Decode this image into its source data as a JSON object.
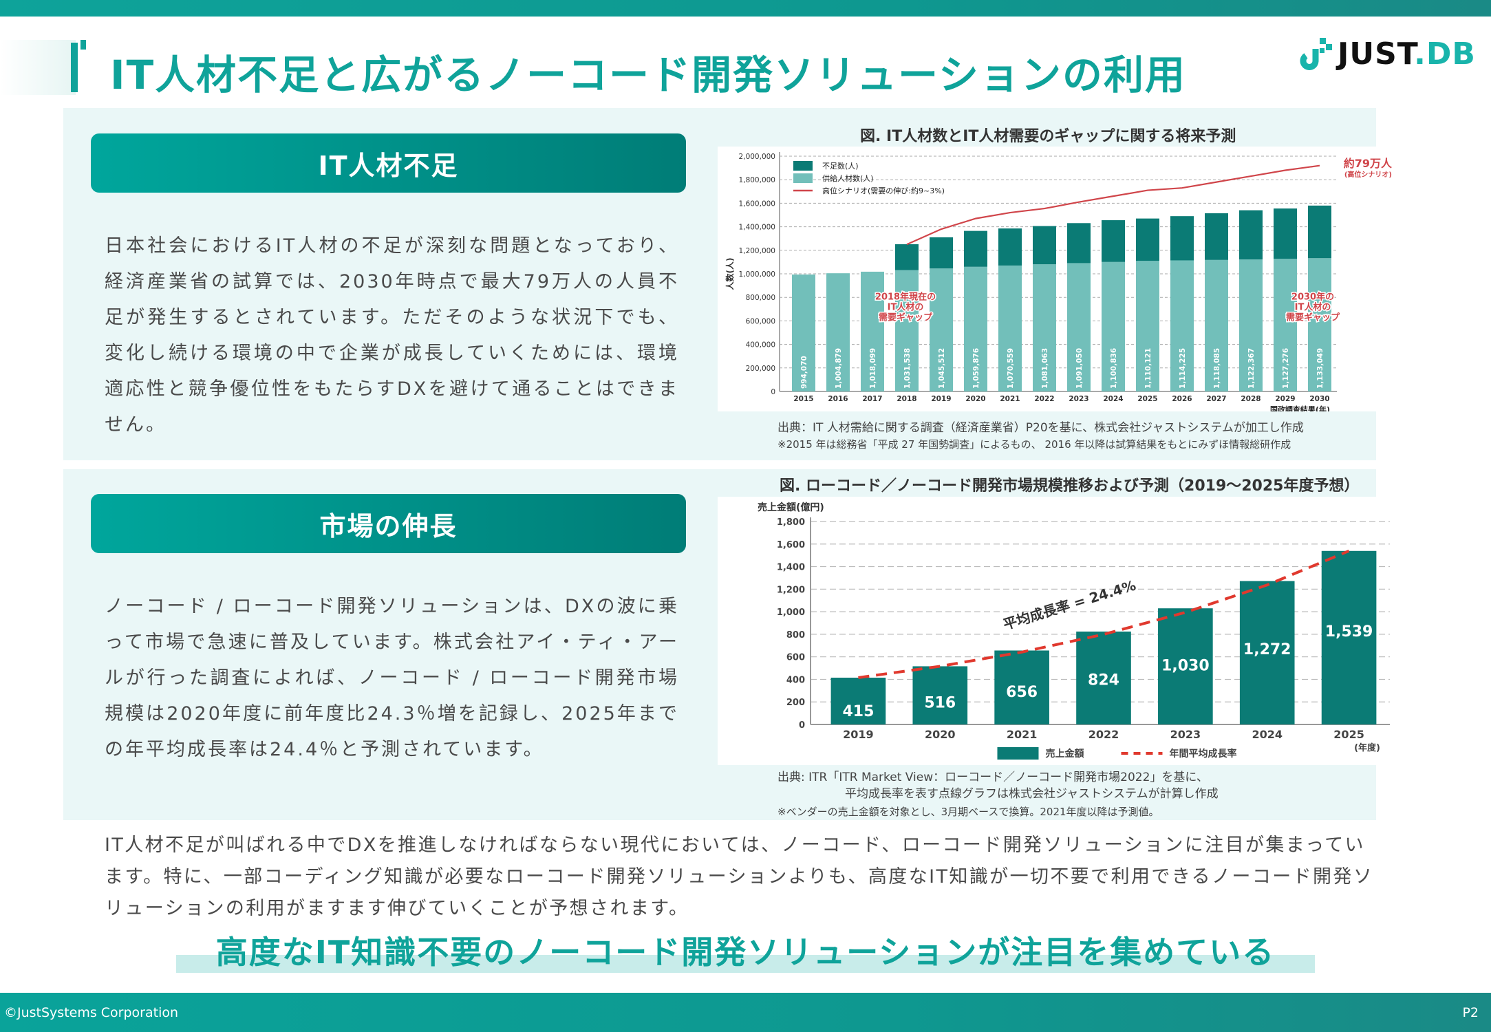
{
  "header": {
    "title": "IT人材不足と広がるノーコード開発ソリューションの利用",
    "logo": {
      "text_main": "JUST",
      "text_accent": ".DB",
      "icon": "justdb-logo-icon"
    }
  },
  "colors": {
    "brand_teal": "#0fa39a",
    "panel_bg": "#eaf7f7",
    "bar_dark": "#0b7b75",
    "bar_light": "#72bfba",
    "line_red": "#d0454a",
    "dash_red": "#e0392e"
  },
  "sections": [
    {
      "header": "IT人材不足",
      "body": "日本社会におけるIT人材の不足が深刻な問題となっており、経済産業省の試算では、2030年時点で最大79万人の人員不足が発生するとされています。ただそのような状況下でも、変化し続ける環境の中で企業が成長していくためには、環境適応性と競争優位性をもたらすDXを避けて通ることはできません。",
      "chart_title": "図. IT人材数とIT人材需要のギャップに関する将来予測",
      "source_lines": [
        "出典：IT 人材需給に関する調査（経済産業省）P20を基に、株式会社ジャストシステムが加工し作成",
        "※2015 年は総務省「平成 27 年国勢調査」によるもの、 2016 年以降は試算結果をもとにみずほ情報総研作成"
      ]
    },
    {
      "header": "市場の伸長",
      "body": "ノーコード / ローコード開発ソリューションは、DXの波に乗って市場で急速に普及しています。株式会社アイ・ティ・アールが行った調査によれば、ノーコード / ローコード開発市場規模は2020年度に前年度比24.3％増を記録し、2025年までの年平均成長率は24.4％と予測されています。",
      "chart_title": "図. ローコード／ノーコード開発市場規模推移および予測（2019～2025年度予想）",
      "source_lines": [
        "出典: ITR「ITR Market View：ローコード／ノーコード開発市場2022」を基に、",
        "平均成長率を表す点線グラフは株式会社ジャストシステムが計算し作成",
        "※ベンダーの売上金額を対象とし、3月期ベースで換算。2021年度以降は予測値。"
      ]
    }
  ],
  "conclusion": "IT人材不足が叫ばれる中でDXを推進しなければならない現代においては、ノーコード、ローコード開発ソリューションに注目が集まっています。特に、一部コーディング知識が必要なローコード開発ソリューションよりも、高度なIT知識が一切不要で利用できるノーコード開発ソリューションの利用がますます伸びていくことが予想されます。",
  "tagline": "高度なIT知識不要のノーコード開発ソリューションが注目を集めている",
  "footer": {
    "copyright": "©JustSystems Corporation",
    "page": "P2"
  },
  "chart_data": [
    {
      "type": "bar",
      "stacked": true,
      "title": "図. IT人材数とIT人材需要のギャップに関する将来予測",
      "xlabel": "国政調査結果(年)",
      "ylabel": "人数(人)",
      "ylim": [
        0,
        2000000
      ],
      "yticks": [
        "0",
        "200,000",
        "400,000",
        "600,000",
        "800,000",
        "1,000,000",
        "1,200,000",
        "1,400,000",
        "1,600,000",
        "1,800,000",
        "2,000,000"
      ],
      "ytick_values": [
        0,
        200000,
        400000,
        600000,
        800000,
        1000000,
        1200000,
        1400000,
        1600000,
        1800000,
        2000000
      ],
      "grid": true,
      "legend_position": "top-left",
      "categories": [
        "2015",
        "2016",
        "2017",
        "2018",
        "2019",
        "2020",
        "2021",
        "2022",
        "2023",
        "2024",
        "2025",
        "2026",
        "2027",
        "2028",
        "2029",
        "2030"
      ],
      "series": [
        {
          "name": "供給人材数(人)",
          "kind": "bar",
          "values": [
            994070,
            1004879,
            1018099,
            1031538,
            1045512,
            1059876,
            1070559,
            1081063,
            1091050,
            1100836,
            1110121,
            1114225,
            1118085,
            1122367,
            1127276,
            1133049
          ],
          "labels": [
            "994,070",
            "1,004,879",
            "1,018,099",
            "1,031,538",
            "1,045,512",
            "1,059,876",
            "1,070,559",
            "1,081,063",
            "1,091,050",
            "1,100,836",
            "1,110,121",
            "1,114,225",
            "1,118,085",
            "1,122,367",
            "1,127,276",
            "1,133,049"
          ]
        },
        {
          "name": "不足数(人)",
          "kind": "bar",
          "values": [
            0,
            0,
            0,
            220000,
            265000,
            305000,
            315000,
            325000,
            340000,
            355000,
            360000,
            376000,
            397000,
            418000,
            428000,
            447000
          ]
        },
        {
          "name": "高位シナリオ(需要の伸び:約9~3%)",
          "kind": "line",
          "values": [
            null,
            null,
            null,
            1250000,
            1380000,
            1470000,
            1520000,
            1555000,
            1610000,
            1660000,
            1710000,
            1730000,
            1780000,
            1830000,
            1880000,
            1920000
          ]
        }
      ],
      "annotations": [
        {
          "text": [
            "2018年現在の",
            "IT人材の",
            "需要ギャップ"
          ],
          "at": "2018"
        },
        {
          "text": [
            "2030年の",
            "IT人材の",
            "需要ギャップ"
          ],
          "at": "2030"
        },
        {
          "text": [
            "約79万人",
            "(高位シナリオ)"
          ],
          "at": "2030"
        }
      ]
    },
    {
      "type": "bar",
      "title": "図. ローコード／ノーコード開発市場規模推移および予測（2019～2025年度予想）",
      "xlabel": "(年度)",
      "ylabel": "売上金額(億円)",
      "ylim": [
        0,
        1800
      ],
      "yticks": [
        "0",
        "200",
        "400",
        "600",
        "800",
        "1,000",
        "1,200",
        "1,400",
        "1,600",
        "1,800"
      ],
      "ytick_values": [
        0,
        200,
        400,
        600,
        800,
        1000,
        1200,
        1400,
        1600,
        1800
      ],
      "grid": true,
      "legend_position": "bottom",
      "categories": [
        "2019",
        "2020",
        "2021",
        "2022",
        "2023",
        "2024",
        "2025"
      ],
      "series": [
        {
          "name": "売上金額",
          "kind": "bar",
          "values": [
            415,
            516,
            656,
            824,
            1030,
            1272,
            1539
          ],
          "labels": [
            "415",
            "516",
            "656",
            "824",
            "1,030",
            "1,272",
            "1,539"
          ]
        },
        {
          "name": "年間平均成長率",
          "kind": "dashed-line",
          "values": [
            415,
            516,
            642,
            799,
            994,
            1237,
            1539
          ]
        }
      ],
      "annotations": [
        {
          "text": "平均成長率 = 24.4%"
        }
      ]
    }
  ]
}
